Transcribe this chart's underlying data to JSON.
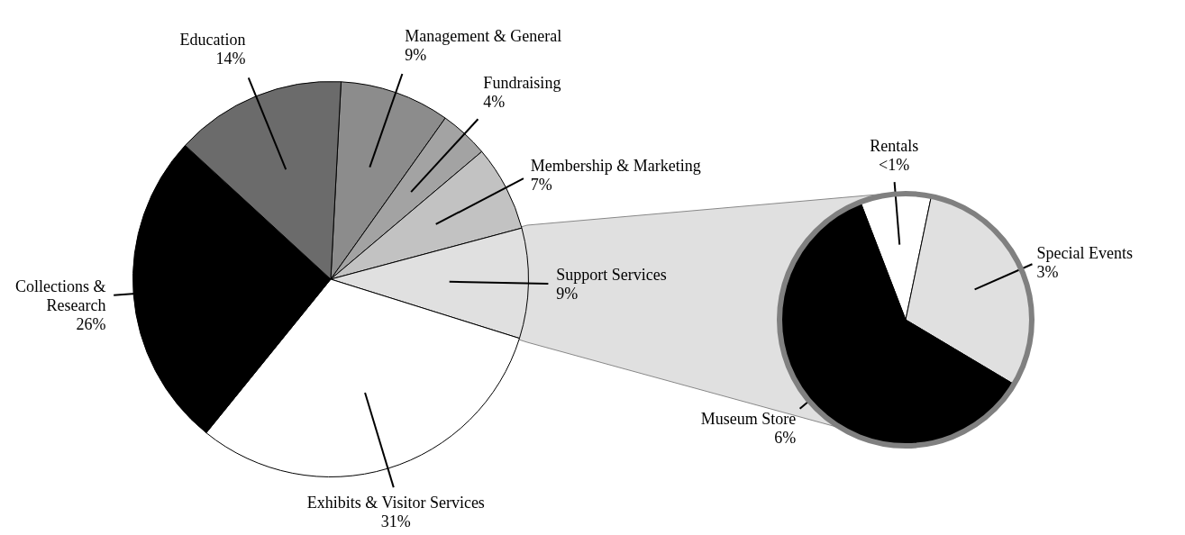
{
  "chart_data": [
    {
      "type": "pie",
      "categories": [
        "Management & General",
        "Fundraising",
        "Membership & Marketing",
        "Support Services",
        "Exhibits & Visitor Services",
        "Collections & Research",
        "Education"
      ],
      "values": [
        9,
        4,
        7,
        9,
        31,
        26,
        14
      ],
      "colors": [
        "#8c8c8c",
        "#a3a3a3",
        "#c2c2c2",
        "#e0e0e0",
        "#ffffff",
        "#000000",
        "#6b6b6b"
      ],
      "value_labels": [
        "9%",
        "4%",
        "7%",
        "9%",
        "31%",
        "26%",
        "14%"
      ]
    },
    {
      "type": "pie",
      "categories": [
        "Rentals",
        "Special Events",
        "Museum Store"
      ],
      "values": [
        0.9,
        3,
        6
      ],
      "colors": [
        "#ffffff",
        "#e0e0e0",
        "#000000"
      ],
      "value_labels": [
        "<1%",
        "3%",
        "6%"
      ]
    }
  ]
}
